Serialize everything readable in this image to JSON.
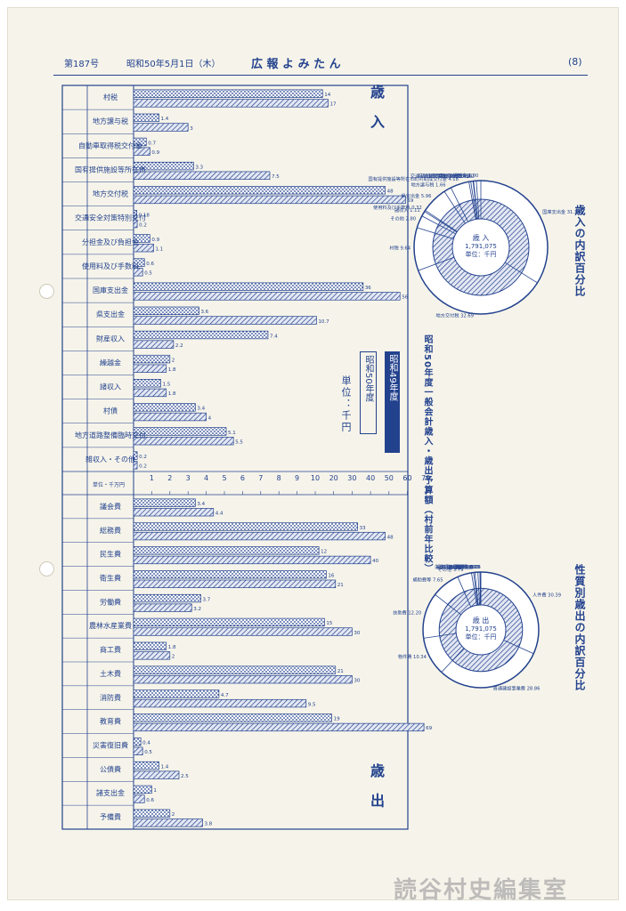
{
  "header": {
    "issue": "第187号",
    "date": "昭和50年5月1日（木）",
    "title": "広 報 よ み た ん",
    "page": "(8)"
  },
  "section_labels": {
    "revenue": "歳 入",
    "expenditure": "歳 出"
  },
  "unit_label": "単位：千円",
  "colors": {
    "ink": "#23428e",
    "paper": "#f6f4ea"
  },
  "pie_revenue": {
    "title": "歳入の内訳百分比",
    "center_lines": [
      "歳 入",
      "1,791,075",
      "単位：千円"
    ],
    "labels": [
      "国庫支出金 31.34",
      "地方交付税 32.69",
      "村税 9.64",
      "その他 2.80",
      "諸収入 1.11",
      "使用料及び手数料 0.32",
      "県支出金 5.96",
      "地方譲与税 1.66",
      "国有提供施設等所在市町村助成交付金 4.18",
      "財産収入 0.42",
      "自動車取得税交付金 0.51",
      "交通安全対策特別交付金 0.11",
      "分担金及び負担金 0.62",
      "繰越金 1.00"
    ]
  },
  "pie_expenditure": {
    "title": "性質別歳出の内訳百分比",
    "center_lines": [
      "歳 出",
      "1,791,075",
      "単位：千円"
    ],
    "labels": [
      "人件費 30.39",
      "普通建設事業費 28.86",
      "物件費 10.34",
      "扶助費 12.20",
      "補助費等 7.65",
      "その他 3.79",
      "維持補修費 0.56",
      "積立金 0.35",
      "公債費 0.80",
      "失業対策事業費 0.53",
      "投資及び出資金 0.19",
      "貸付金 0.06"
    ]
  },
  "chart_data": {
    "type": "bar",
    "title": "昭和50年度一般会計歳入・歳出予算額（村前年比較）",
    "unit": "単位：千円",
    "legend": [
      "昭和49年度",
      "昭和50年度"
    ],
    "tick_labels": [
      "1",
      "2",
      "3",
      "4",
      "5",
      "6",
      "7",
      "8",
      "9",
      "10",
      "20",
      "30",
      "40",
      "50",
      "60",
      "70"
    ],
    "tick_unit_label": "単位・千万円",
    "revenue_categories": [
      "村税",
      "地方譲与税",
      "自動車取得税交付金",
      "国有提供施設等所在市町村助成交付金",
      "地方交付税",
      "交通安全対策特別交付金",
      "分担金及び負担金",
      "使用料及び手数料",
      "国庫支出金",
      "県支出金",
      "財産収入",
      "繰越金",
      "諸収入",
      "村債",
      "地方道路整備臨時交付金",
      "雑収入・その他"
    ],
    "expenditure_categories": [
      "議会費",
      "総務費",
      "民生費",
      "衛生費",
      "労働費",
      "農林水産業費",
      "商工費",
      "土木費",
      "消防費",
      "教育費",
      "災害復旧費",
      "公債費",
      "諸支出金",
      "予備費"
    ],
    "revenue_series": [
      {
        "name": "昭和49年度",
        "values": [
          14,
          1.4,
          0.7,
          3.3,
          48,
          0.18,
          0.9,
          0.6,
          36,
          3.6,
          7.4,
          2.0,
          1.5,
          3.4,
          5.1,
          0.2
        ]
      },
      {
        "name": "昭和50年度",
        "values": [
          17,
          3.0,
          0.9,
          7.5,
          59,
          0.2,
          1.1,
          0.5,
          56,
          10.7,
          2.2,
          1.8,
          1.8,
          4.0,
          5.5,
          0.2
        ]
      }
    ],
    "expenditure_series": [
      {
        "name": "昭和49年度",
        "values": [
          3.4,
          33,
          12,
          16,
          3.7,
          15,
          1.8,
          21,
          4.7,
          19,
          0.4,
          1.4,
          1.0,
          2.0
        ]
      },
      {
        "name": "昭和50年度",
        "values": [
          4.4,
          48,
          40,
          21,
          3.2,
          30,
          2.0,
          30,
          9.5,
          69,
          0.5,
          2.5,
          0.6,
          3.8
        ]
      }
    ]
  },
  "watermark": "読谷村史編集室"
}
